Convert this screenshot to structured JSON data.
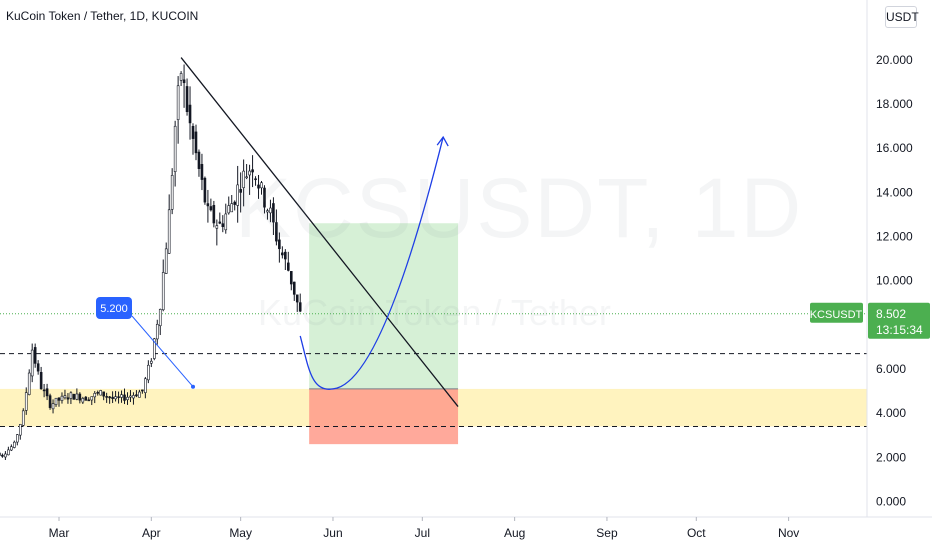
{
  "header": {
    "title": "KuCoin Token / Tether, 1D, KUCOIN",
    "currency": "USDT"
  },
  "watermark": {
    "symbol": "KCSUSDT, 1D",
    "description": "KuCoin Token / Tether"
  },
  "price_tag": {
    "symbol": "KCSUSDT",
    "price": "8.502",
    "countdown": "13:15:34"
  },
  "annotation": {
    "label": "5.200"
  },
  "colors": {
    "up_candle": "#ffffff",
    "down_candle": "#131722",
    "price_tag_bg": "#4caf50",
    "label_bg": "#2962ff",
    "support_zone": "#fff3bf",
    "profit_zone": "#d6f0d6",
    "loss_zone": "#ff9a8a",
    "curve": "#1e3ee6"
  },
  "chart_data": {
    "type": "candlestick",
    "x_ticks": [
      "Mar",
      "Apr",
      "May",
      "Jun",
      "Jul",
      "Aug",
      "Sep",
      "Oct",
      "Nov"
    ],
    "y_ticks": [
      "20.000",
      "18.000",
      "16.000",
      "14.000",
      "12.000",
      "10.000",
      "6.000",
      "4.000",
      "2.000",
      "0.000"
    ],
    "ylim": [
      -0.2,
      21.8
    ],
    "last_price": 8.502,
    "series": [
      {
        "name": "price_path",
        "points": [
          [
            "2021-02-06",
            2.3
          ],
          [
            "2021-02-10",
            2.1
          ],
          [
            "2021-02-14",
            2.6
          ],
          [
            "2021-02-17",
            4.0
          ],
          [
            "2021-02-20",
            6.9
          ],
          [
            "2021-02-23",
            5.2
          ],
          [
            "2021-02-26",
            4.4
          ],
          [
            "2021-03-01",
            4.6
          ],
          [
            "2021-03-05",
            4.8
          ],
          [
            "2021-03-10",
            4.7
          ],
          [
            "2021-03-15",
            4.9
          ],
          [
            "2021-03-20",
            4.6
          ],
          [
            "2021-03-25",
            4.8
          ],
          [
            "2021-03-29",
            5.0
          ],
          [
            "2021-04-01",
            6.5
          ],
          [
            "2021-04-04",
            9.0
          ],
          [
            "2021-04-07",
            13.0
          ],
          [
            "2021-04-09",
            17.0
          ],
          [
            "2021-04-11",
            19.5
          ],
          [
            "2021-04-14",
            17.0
          ],
          [
            "2021-04-17",
            15.0
          ],
          [
            "2021-04-20",
            13.0
          ],
          [
            "2021-04-24",
            12.5
          ],
          [
            "2021-04-28",
            13.5
          ],
          [
            "2021-05-01",
            14.5
          ],
          [
            "2021-05-05",
            15.3
          ],
          [
            "2021-05-08",
            14.0
          ],
          [
            "2021-05-11",
            13.0
          ],
          [
            "2021-05-14",
            11.5
          ],
          [
            "2021-05-17",
            10.5
          ],
          [
            "2021-05-19",
            9.5
          ],
          [
            "2021-05-21",
            8.5
          ]
        ]
      }
    ],
    "drawings": {
      "support_zone": [
        3.4,
        5.1
      ],
      "resistance_line": 6.7,
      "support_line": 3.4,
      "target_zone": [
        5.1,
        12.6
      ],
      "stop_zone": [
        2.6,
        5.1
      ],
      "trendline": [
        [
          "2021-04-11",
          20.1
        ],
        [
          "2021-07-13",
          4.3
        ]
      ],
      "annotation_point": [
        "2021-04-15",
        5.2
      ],
      "projection": [
        [
          "2021-05-21",
          7.5
        ],
        [
          "2021-06-01",
          5.1
        ],
        [
          "2021-07-08",
          16.5
        ]
      ]
    }
  }
}
